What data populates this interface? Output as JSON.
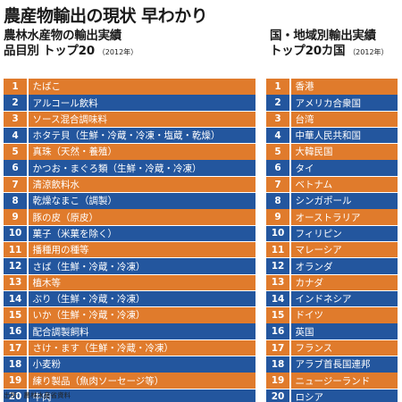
{
  "title": "農産物輸出の現状 早わかり",
  "left_heading": {
    "line1": "農林水産物の輸出実績",
    "line2": "品目別 トップ20",
    "year": "（2012年）"
  },
  "right_heading": {
    "line1": "国・地域別輸出実績",
    "line2": "トップ20カ国",
    "year": "（2012年）"
  },
  "colors": {
    "orange": "#e07b2c",
    "blue": "#23569e"
  },
  "items": [
    {
      "rank": "1",
      "name": "たばこ"
    },
    {
      "rank": "2",
      "name": "アルコール飲料"
    },
    {
      "rank": "3",
      "name": "ソース混合調味料"
    },
    {
      "rank": "4",
      "name": "ホタテ貝（生鮮・冷蔵・冷凍・塩蔵・乾燥）"
    },
    {
      "rank": "5",
      "name": "真珠（天然・養殖）"
    },
    {
      "rank": "6",
      "name": "かつお・まぐろ類（生鮮・冷蔵・冷凍）"
    },
    {
      "rank": "7",
      "name": "清涼飲料水"
    },
    {
      "rank": "8",
      "name": "乾燥なまこ（調製）"
    },
    {
      "rank": "9",
      "name": "豚の皮（原皮）"
    },
    {
      "rank": "10",
      "name": "菓子（米菓を除く）"
    },
    {
      "rank": "11",
      "name": "播種用の種等"
    },
    {
      "rank": "12",
      "name": "さば（生鮮・冷蔵・冷凍）"
    },
    {
      "rank": "13",
      "name": "植木等"
    },
    {
      "rank": "14",
      "name": "ぶり（生鮮・冷蔵・冷凍）"
    },
    {
      "rank": "15",
      "name": "いか（生鮮・冷蔵・冷凍）"
    },
    {
      "rank": "16",
      "name": "配合調製飼料"
    },
    {
      "rank": "17",
      "name": "さけ・ます（生鮮・冷蔵・冷凍）"
    },
    {
      "rank": "18",
      "name": "小麦粉"
    },
    {
      "rank": "19",
      "name": "練り製品（魚肉ソーセージ等）"
    },
    {
      "rank": "20",
      "name": "牛肉"
    }
  ],
  "countries": [
    {
      "rank": "1",
      "name": "香港"
    },
    {
      "rank": "2",
      "name": "アメリカ合衆国"
    },
    {
      "rank": "3",
      "name": "台湾"
    },
    {
      "rank": "4",
      "name": "中華人民共和国"
    },
    {
      "rank": "5",
      "name": "大韓民国"
    },
    {
      "rank": "6",
      "name": "タイ"
    },
    {
      "rank": "7",
      "name": "ベトナム"
    },
    {
      "rank": "8",
      "name": "シンガポール"
    },
    {
      "rank": "9",
      "name": "オーストラリア"
    },
    {
      "rank": "10",
      "name": "フィリピン"
    },
    {
      "rank": "11",
      "name": "マレーシア"
    },
    {
      "rank": "12",
      "name": "オランダ"
    },
    {
      "rank": "13",
      "name": "カナダ"
    },
    {
      "rank": "14",
      "name": "インドネシア"
    },
    {
      "rank": "15",
      "name": "ドイツ"
    },
    {
      "rank": "16",
      "name": "英国"
    },
    {
      "rank": "17",
      "name": "フランス"
    },
    {
      "rank": "18",
      "name": "アラブ首長国連邦"
    },
    {
      "rank": "19",
      "name": "ニュージーランド"
    },
    {
      "rank": "20",
      "name": "ロシア"
    }
  ],
  "source": "出所：農林水産省資料"
}
